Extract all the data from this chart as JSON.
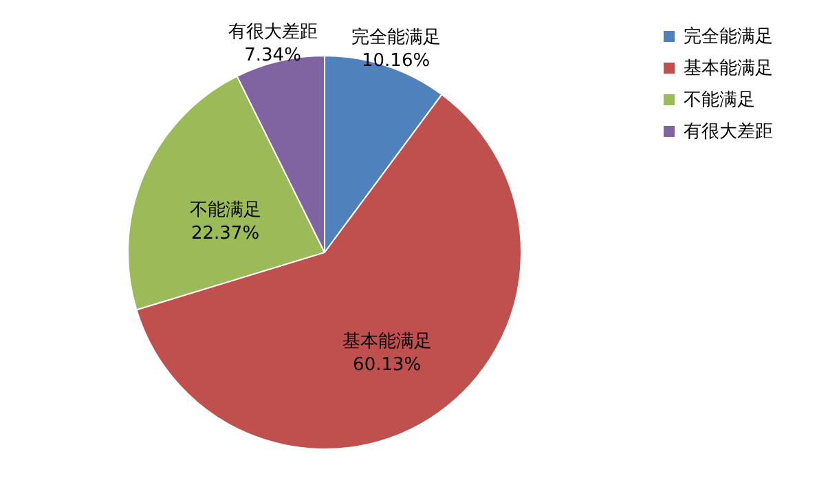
{
  "chart_data": {
    "type": "pie",
    "categories": [
      "完全能满足",
      "基本能满足",
      "不能满足",
      "有很大差距"
    ],
    "values": [
      10.16,
      60.13,
      22.37,
      7.34
    ],
    "colors": [
      "#4f81bd",
      "#c0504d",
      "#9bbb59",
      "#8064a2"
    ],
    "value_labels": [
      "10.16%",
      "60.13%",
      "22.37%",
      "7.34%"
    ],
    "legend": "right"
  }
}
